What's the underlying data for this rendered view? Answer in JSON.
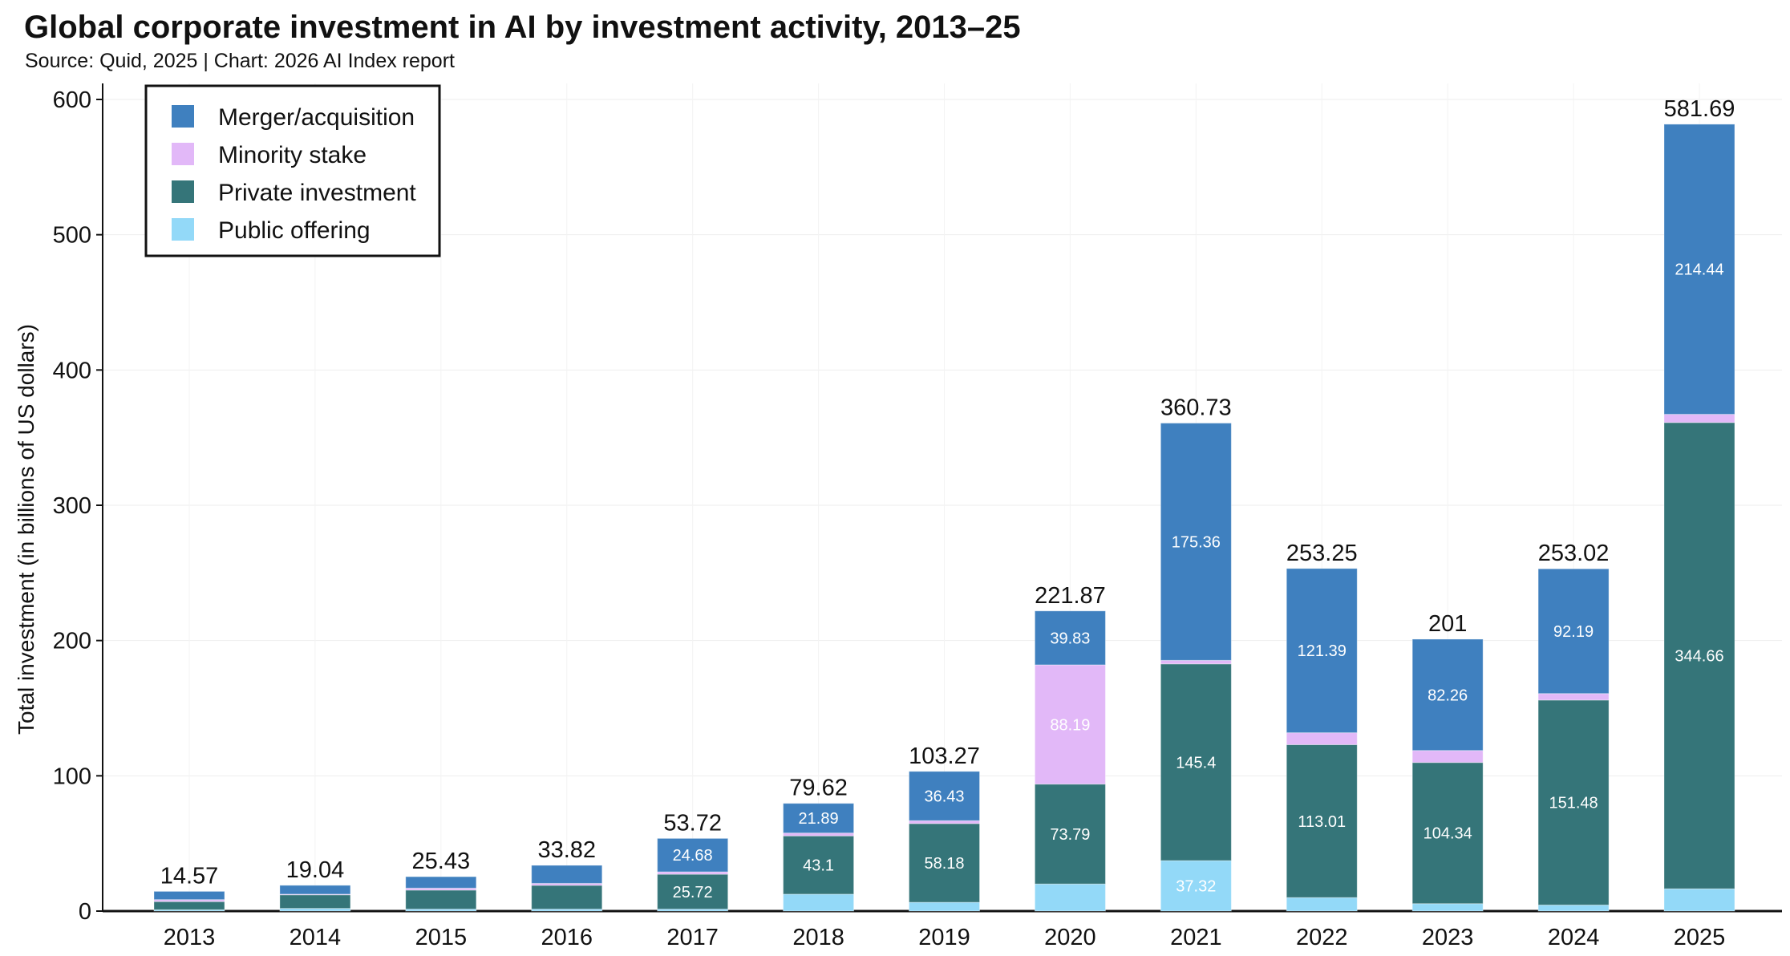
{
  "chart_data": {
    "type": "bar",
    "stacked": true,
    "title": "Global corporate investment in AI by investment activity, 2013–25",
    "subtitle": "Source: Quid, 2025 | Chart: 2026 AI Index report",
    "xlabel": "",
    "ylabel": "Total investment (in billions of US dollars)",
    "ylim": [
      0,
      600
    ],
    "yticks": [
      0,
      100,
      200,
      300,
      400,
      500,
      600
    ],
    "grid": true,
    "legend_position": "top-left",
    "categories": [
      "2013",
      "2014",
      "2015",
      "2016",
      "2017",
      "2018",
      "2019",
      "2020",
      "2021",
      "2022",
      "2023",
      "2024",
      "2025"
    ],
    "totals": [
      "14.57",
      "19.04",
      "25.43",
      "33.82",
      "53.72",
      "79.62",
      "103.27",
      "221.87",
      "360.73",
      "253.25",
      "201",
      "253.02",
      "581.69"
    ],
    "series": [
      {
        "name": "Public offering",
        "color": "#93d9f8",
        "values": [
          1.0,
          2.0,
          1.5,
          1.5,
          1.5,
          12.5,
          6.5,
          20.06,
          37.32,
          10.0,
          5.5,
          4.5,
          16.5
        ],
        "labels": [
          null,
          null,
          null,
          null,
          null,
          null,
          null,
          null,
          "37.32",
          null,
          null,
          null,
          null
        ]
      },
      {
        "name": "Private investment",
        "color": "#357579",
        "values": [
          6.0,
          10.0,
          14.0,
          17.5,
          25.72,
          43.1,
          58.18,
          73.79,
          145.4,
          113.01,
          104.34,
          151.48,
          344.66
        ],
        "labels": [
          null,
          null,
          null,
          null,
          "25.72",
          "43.1",
          "58.18",
          "73.79",
          "145.4",
          "113.01",
          "104.34",
          "151.48",
          "344.66"
        ]
      },
      {
        "name": "Minority stake",
        "color": "#e2b8f8",
        "values": [
          1.5,
          0.5,
          1.5,
          1.5,
          1.82,
          2.13,
          2.16,
          88.19,
          2.65,
          8.85,
          8.9,
          4.85,
          6.09
        ],
        "labels": [
          null,
          null,
          null,
          null,
          null,
          null,
          null,
          "88.19",
          null,
          null,
          null,
          null,
          null
        ]
      },
      {
        "name": "Merger/acquisition",
        "color": "#3f80bf",
        "values": [
          6.07,
          6.54,
          8.43,
          13.32,
          24.68,
          21.89,
          36.43,
          39.83,
          175.36,
          121.39,
          82.26,
          92.19,
          214.44
        ],
        "labels": [
          null,
          null,
          null,
          null,
          "24.68",
          "21.89",
          "36.43",
          "39.83",
          "175.36",
          "121.39",
          "82.26",
          "92.19",
          "214.44"
        ]
      }
    ],
    "legend_order": [
      "Merger/acquisition",
      "Minority stake",
      "Private investment",
      "Public offering"
    ]
  }
}
